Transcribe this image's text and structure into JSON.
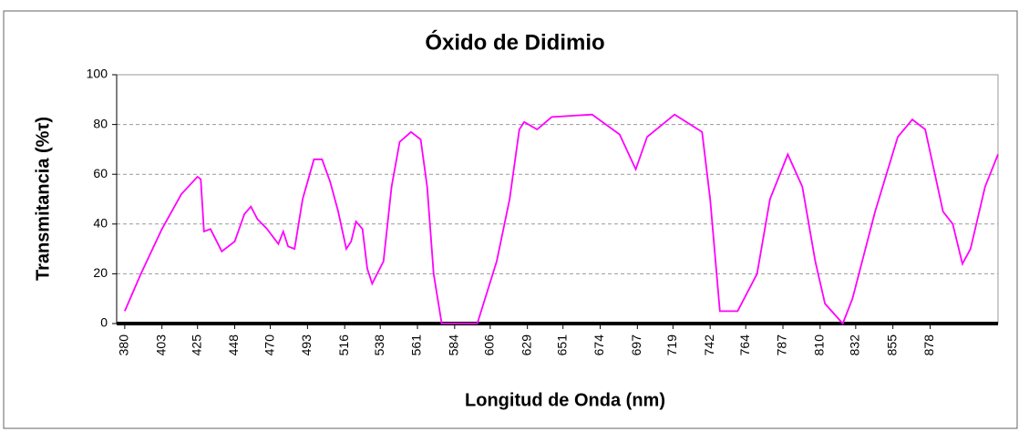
{
  "chart_data": {
    "type": "line",
    "title": "Óxido de Didimio",
    "xlabel": "Longitud de Onda (nm)",
    "ylabel": "Transmitancia (%τ)",
    "color": "#ff00ff",
    "x": [
      380,
      390,
      403,
      415,
      425,
      427,
      429,
      433,
      440,
      448,
      454,
      458,
      462,
      468,
      475,
      478,
      481,
      485,
      490,
      497,
      502,
      507,
      512,
      517,
      520,
      523,
      527,
      530,
      533,
      540,
      545,
      550,
      557,
      563,
      567,
      571,
      576,
      598,
      610,
      618,
      624,
      627,
      635,
      644,
      669,
      686,
      696,
      703,
      720,
      737,
      742,
      748,
      759,
      771,
      779,
      790,
      799,
      807,
      813,
      824,
      830,
      844,
      858,
      867,
      875,
      886,
      892,
      898,
      903,
      912,
      920
    ],
    "values": [
      5,
      20,
      38,
      52,
      59,
      58,
      37,
      38,
      29,
      33,
      44,
      47,
      42,
      38,
      32,
      37,
      31,
      30,
      50,
      66,
      66,
      57,
      45,
      30,
      33,
      41,
      38,
      22,
      16,
      25,
      55,
      73,
      77,
      74,
      55,
      20,
      0,
      0,
      25,
      50,
      78,
      81,
      78,
      83,
      84,
      76,
      62,
      75,
      84,
      77,
      50,
      5,
      5,
      20,
      50,
      68,
      55,
      25,
      8,
      0,
      10,
      45,
      75,
      82,
      78,
      45,
      40,
      24,
      30,
      55,
      68
    ],
    "xlim": [
      375,
      920
    ],
    "ylim": [
      0,
      100
    ],
    "xticks": [
      380,
      403,
      425,
      448,
      470,
      493,
      516,
      538,
      561,
      584,
      606,
      629,
      651,
      674,
      697,
      719,
      742,
      764,
      787,
      810,
      832,
      855,
      878
    ],
    "yticks": [
      0,
      20,
      40,
      60,
      80,
      100
    ],
    "grid": true
  }
}
